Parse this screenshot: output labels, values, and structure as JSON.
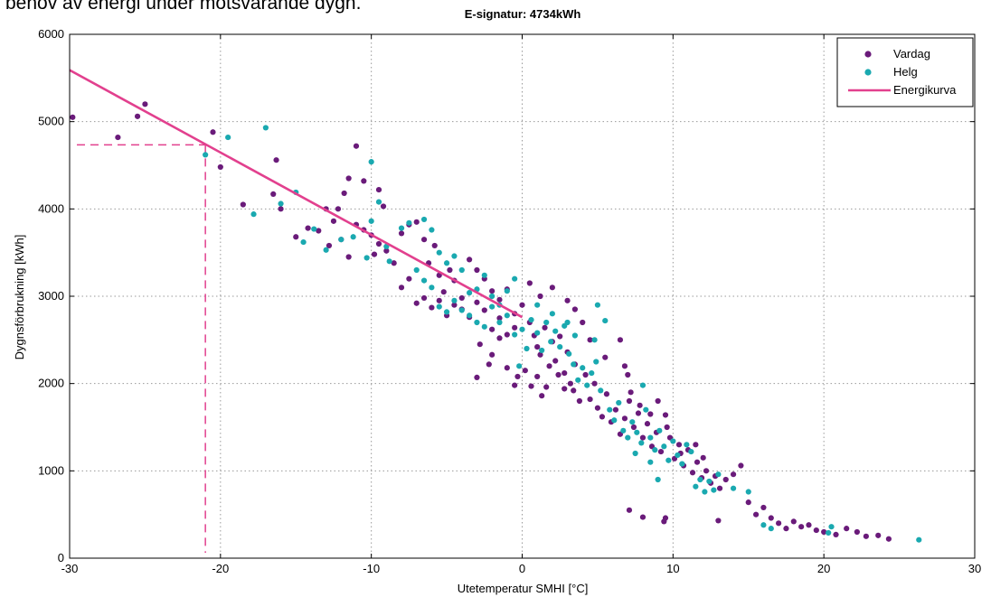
{
  "caption": "behov av energi under motsvarande dygn.",
  "chart_data": {
    "type": "scatter",
    "title": "E-signatur: 4734kWh",
    "xlabel": "Utetemperatur SMHI [°C]",
    "ylabel": "Dygnsförbrukning [kWh]",
    "xlim": [
      -30,
      30
    ],
    "ylim": [
      0,
      6000
    ],
    "xticks": [
      -30,
      -20,
      -10,
      0,
      10,
      20,
      30
    ],
    "yticks": [
      0,
      1000,
      2000,
      3000,
      4000,
      5000,
      6000
    ],
    "grid": true,
    "legend_position": "top-right",
    "series": [
      {
        "name": "Vardag",
        "type": "scatter",
        "color": "#6a1b7a",
        "points": [
          [
            -29.8,
            5050
          ],
          [
            -26.8,
            4820
          ],
          [
            -25.5,
            5060
          ],
          [
            -25.0,
            5200
          ],
          [
            -20.5,
            4880
          ],
          [
            -20.0,
            4480
          ],
          [
            -16.3,
            4560
          ],
          [
            -16.5,
            4170
          ],
          [
            -16.0,
            4000
          ],
          [
            -18.5,
            4050
          ],
          [
            -13.0,
            4000
          ],
          [
            -12.2,
            4000
          ],
          [
            -11.8,
            4180
          ],
          [
            -11.5,
            4350
          ],
          [
            -11.0,
            4720
          ],
          [
            -10.5,
            4320
          ],
          [
            -9.5,
            4220
          ],
          [
            -9.2,
            4030
          ],
          [
            -15.0,
            3680
          ],
          [
            -14.2,
            3780
          ],
          [
            -13.5,
            3750
          ],
          [
            -12.8,
            3580
          ],
          [
            -12.5,
            3860
          ],
          [
            -12.0,
            3650
          ],
          [
            -11.5,
            3450
          ],
          [
            -11.0,
            3820
          ],
          [
            -10.5,
            3760
          ],
          [
            -10.0,
            3700
          ],
          [
            -9.8,
            3480
          ],
          [
            -9.5,
            3600
          ],
          [
            -9.0,
            3520
          ],
          [
            -8.5,
            3380
          ],
          [
            -8.0,
            3720
          ],
          [
            -7.5,
            3820
          ],
          [
            -7.0,
            3850
          ],
          [
            -6.5,
            3650
          ],
          [
            -6.2,
            3380
          ],
          [
            -5.8,
            3580
          ],
          [
            -5.5,
            3240
          ],
          [
            -5.2,
            3050
          ],
          [
            -4.8,
            3300
          ],
          [
            -4.5,
            3180
          ],
          [
            -4.0,
            2980
          ],
          [
            -3.5,
            3420
          ],
          [
            -3.0,
            3300
          ],
          [
            -2.5,
            3200
          ],
          [
            -2.0,
            3060
          ],
          [
            -1.5,
            2960
          ],
          [
            -1.0,
            3080
          ],
          [
            -0.5,
            2800
          ],
          [
            -8.0,
            3100
          ],
          [
            -7.5,
            3200
          ],
          [
            -7.0,
            2920
          ],
          [
            -6.5,
            2980
          ],
          [
            -6.0,
            2870
          ],
          [
            -5.5,
            2950
          ],
          [
            -5.0,
            2780
          ],
          [
            -4.5,
            2900
          ],
          [
            -4.0,
            2850
          ],
          [
            -3.5,
            2760
          ],
          [
            -3.0,
            2930
          ],
          [
            -2.5,
            2840
          ],
          [
            -2.0,
            2620
          ],
          [
            -1.5,
            2750
          ],
          [
            -1.0,
            2560
          ],
          [
            -0.5,
            2640
          ],
          [
            -2.8,
            2450
          ],
          [
            -2.0,
            2330
          ],
          [
            -1.5,
            2520
          ],
          [
            -3.0,
            2070
          ],
          [
            -2.2,
            2220
          ],
          [
            -1.0,
            2180
          ],
          [
            -0.3,
            2080
          ],
          [
            -0.5,
            1980
          ],
          [
            0.0,
            2900
          ],
          [
            0.5,
            2700
          ],
          [
            0.8,
            2550
          ],
          [
            1.0,
            2420
          ],
          [
            1.2,
            2330
          ],
          [
            1.5,
            2640
          ],
          [
            1.8,
            2200
          ],
          [
            2.0,
            2480
          ],
          [
            2.2,
            2260
          ],
          [
            2.5,
            2540
          ],
          [
            2.8,
            2120
          ],
          [
            3.0,
            2360
          ],
          [
            3.2,
            2000
          ],
          [
            3.5,
            2220
          ],
          [
            0.2,
            2150
          ],
          [
            0.6,
            1970
          ],
          [
            1.0,
            2080
          ],
          [
            1.3,
            1860
          ],
          [
            1.6,
            1960
          ],
          [
            2.4,
            2100
          ],
          [
            2.8,
            1940
          ],
          [
            3.4,
            1920
          ],
          [
            3.8,
            1800
          ],
          [
            4.2,
            2100
          ],
          [
            4.5,
            1820
          ],
          [
            4.8,
            2000
          ],
          [
            5.0,
            1720
          ],
          [
            5.3,
            1620
          ],
          [
            5.6,
            1880
          ],
          [
            5.9,
            1560
          ],
          [
            6.2,
            1700
          ],
          [
            6.5,
            1420
          ],
          [
            6.8,
            1600
          ],
          [
            7.1,
            1800
          ],
          [
            7.4,
            1500
          ],
          [
            7.7,
            1660
          ],
          [
            8.0,
            1380
          ],
          [
            8.3,
            1540
          ],
          [
            8.6,
            1280
          ],
          [
            8.9,
            1440
          ],
          [
            9.2,
            1220
          ],
          [
            9.5,
            1640
          ],
          [
            9.8,
            1380
          ],
          [
            10.1,
            1140
          ],
          [
            10.4,
            1300
          ],
          [
            10.7,
            1060
          ],
          [
            11.0,
            1240
          ],
          [
            11.3,
            980
          ],
          [
            11.6,
            1100
          ],
          [
            11.9,
            920
          ],
          [
            12.2,
            1000
          ],
          [
            12.5,
            860
          ],
          [
            12.8,
            940
          ],
          [
            13.1,
            800
          ],
          [
            13.5,
            900
          ],
          [
            14.0,
            960
          ],
          [
            14.5,
            1060
          ],
          [
            15.0,
            640
          ],
          [
            15.5,
            500
          ],
          [
            16.0,
            580
          ],
          [
            16.5,
            460
          ],
          [
            17.0,
            400
          ],
          [
            17.5,
            340
          ],
          [
            18.0,
            420
          ],
          [
            18.5,
            360
          ],
          [
            19.0,
            380
          ],
          [
            19.5,
            320
          ],
          [
            20.0,
            300
          ],
          [
            20.8,
            270
          ],
          [
            21.5,
            340
          ],
          [
            22.2,
            300
          ],
          [
            22.8,
            250
          ],
          [
            23.6,
            260
          ],
          [
            24.3,
            220
          ],
          [
            7.1,
            550
          ],
          [
            8.0,
            470
          ],
          [
            9.5,
            460
          ],
          [
            9.4,
            420
          ],
          [
            13.0,
            430
          ],
          [
            3.0,
            2950
          ],
          [
            2.0,
            3100
          ],
          [
            1.2,
            3000
          ],
          [
            0.5,
            3150
          ],
          [
            4.0,
            2700
          ],
          [
            3.5,
            2850
          ],
          [
            4.5,
            2500
          ],
          [
            5.5,
            2300
          ],
          [
            6.5,
            2500
          ],
          [
            6.8,
            2200
          ],
          [
            7.0,
            2100
          ],
          [
            7.2,
            1900
          ],
          [
            7.8,
            1750
          ],
          [
            8.5,
            1650
          ],
          [
            9.0,
            1800
          ],
          [
            9.6,
            1500
          ],
          [
            10.5,
            1200
          ],
          [
            11.5,
            1300
          ],
          [
            12.0,
            1150
          ]
        ]
      },
      {
        "name": "Helg",
        "type": "scatter",
        "color": "#1aa9b0",
        "points": [
          [
            -21.0,
            4620
          ],
          [
            -19.5,
            4820
          ],
          [
            -17.0,
            4930
          ],
          [
            -16.0,
            4060
          ],
          [
            -15.0,
            4190
          ],
          [
            -17.8,
            3940
          ],
          [
            -14.5,
            3620
          ],
          [
            -13.8,
            3770
          ],
          [
            -13.0,
            3530
          ],
          [
            -12.0,
            3650
          ],
          [
            -11.2,
            3680
          ],
          [
            -10.0,
            4540
          ],
          [
            -9.5,
            4080
          ],
          [
            -10.0,
            3860
          ],
          [
            -10.3,
            3440
          ],
          [
            -9.0,
            3570
          ],
          [
            -8.8,
            3400
          ],
          [
            -8.0,
            3780
          ],
          [
            -7.5,
            3840
          ],
          [
            -6.5,
            3880
          ],
          [
            -6.0,
            3760
          ],
          [
            -5.5,
            3500
          ],
          [
            -5.0,
            3380
          ],
          [
            -4.5,
            3460
          ],
          [
            -4.0,
            3300
          ],
          [
            -3.5,
            3040
          ],
          [
            -3.0,
            3080
          ],
          [
            -2.5,
            3240
          ],
          [
            -2.0,
            3000
          ],
          [
            -1.5,
            2900
          ],
          [
            -1.0,
            3060
          ],
          [
            -0.5,
            3200
          ],
          [
            -7.0,
            3300
          ],
          [
            -6.5,
            3180
          ],
          [
            -6.0,
            3100
          ],
          [
            -5.5,
            2880
          ],
          [
            -5.0,
            2820
          ],
          [
            -4.5,
            2950
          ],
          [
            -4.0,
            2840
          ],
          [
            -3.5,
            2780
          ],
          [
            -3.0,
            2700
          ],
          [
            -2.5,
            2650
          ],
          [
            -2.0,
            2880
          ],
          [
            -1.5,
            2700
          ],
          [
            -1.0,
            2780
          ],
          [
            -0.5,
            2560
          ],
          [
            -0.2,
            2200
          ],
          [
            0.0,
            2620
          ],
          [
            0.3,
            2400
          ],
          [
            0.6,
            2730
          ],
          [
            1.0,
            2580
          ],
          [
            1.3,
            2380
          ],
          [
            1.6,
            2700
          ],
          [
            1.9,
            2480
          ],
          [
            2.2,
            2600
          ],
          [
            2.5,
            2420
          ],
          [
            2.8,
            2660
          ],
          [
            3.1,
            2340
          ],
          [
            3.4,
            2220
          ],
          [
            3.7,
            2040
          ],
          [
            4.0,
            2180
          ],
          [
            4.3,
            1980
          ],
          [
            4.6,
            2120
          ],
          [
            4.9,
            2250
          ],
          [
            5.2,
            1920
          ],
          [
            5.5,
            2720
          ],
          [
            5.8,
            1700
          ],
          [
            6.1,
            1580
          ],
          [
            6.4,
            1780
          ],
          [
            6.7,
            1460
          ],
          [
            7.0,
            1380
          ],
          [
            7.3,
            1560
          ],
          [
            7.6,
            1440
          ],
          [
            7.9,
            1320
          ],
          [
            8.2,
            1700
          ],
          [
            8.5,
            1380
          ],
          [
            8.8,
            1240
          ],
          [
            9.1,
            1460
          ],
          [
            9.4,
            1280
          ],
          [
            9.7,
            1120
          ],
          [
            10.0,
            1340
          ],
          [
            10.3,
            1180
          ],
          [
            10.6,
            1080
          ],
          [
            10.9,
            1300
          ],
          [
            11.2,
            1220
          ],
          [
            11.5,
            820
          ],
          [
            11.8,
            900
          ],
          [
            12.1,
            760
          ],
          [
            12.4,
            880
          ],
          [
            12.7,
            780
          ],
          [
            13.0,
            960
          ],
          [
            14.0,
            800
          ],
          [
            15.0,
            760
          ],
          [
            16.0,
            380
          ],
          [
            16.5,
            340
          ],
          [
            20.5,
            360
          ],
          [
            20.3,
            290
          ],
          [
            26.3,
            210
          ],
          [
            1.0,
            2900
          ],
          [
            2.0,
            2800
          ],
          [
            3.0,
            2700
          ],
          [
            3.5,
            2550
          ],
          [
            5.0,
            2900
          ],
          [
            4.8,
            2500
          ],
          [
            8.0,
            1980
          ],
          [
            8.5,
            1100
          ],
          [
            9.0,
            900
          ],
          [
            7.5,
            1200
          ]
        ]
      },
      {
        "name": "Energikurva",
        "type": "line",
        "color": "#e2408e",
        "points": [
          [
            -30,
            5590
          ],
          [
            0,
            2760
          ]
        ]
      }
    ],
    "reference_lines": {
      "color": "#e2408e",
      "style": "dashed",
      "x_value": -21,
      "y_value": 4734
    }
  }
}
